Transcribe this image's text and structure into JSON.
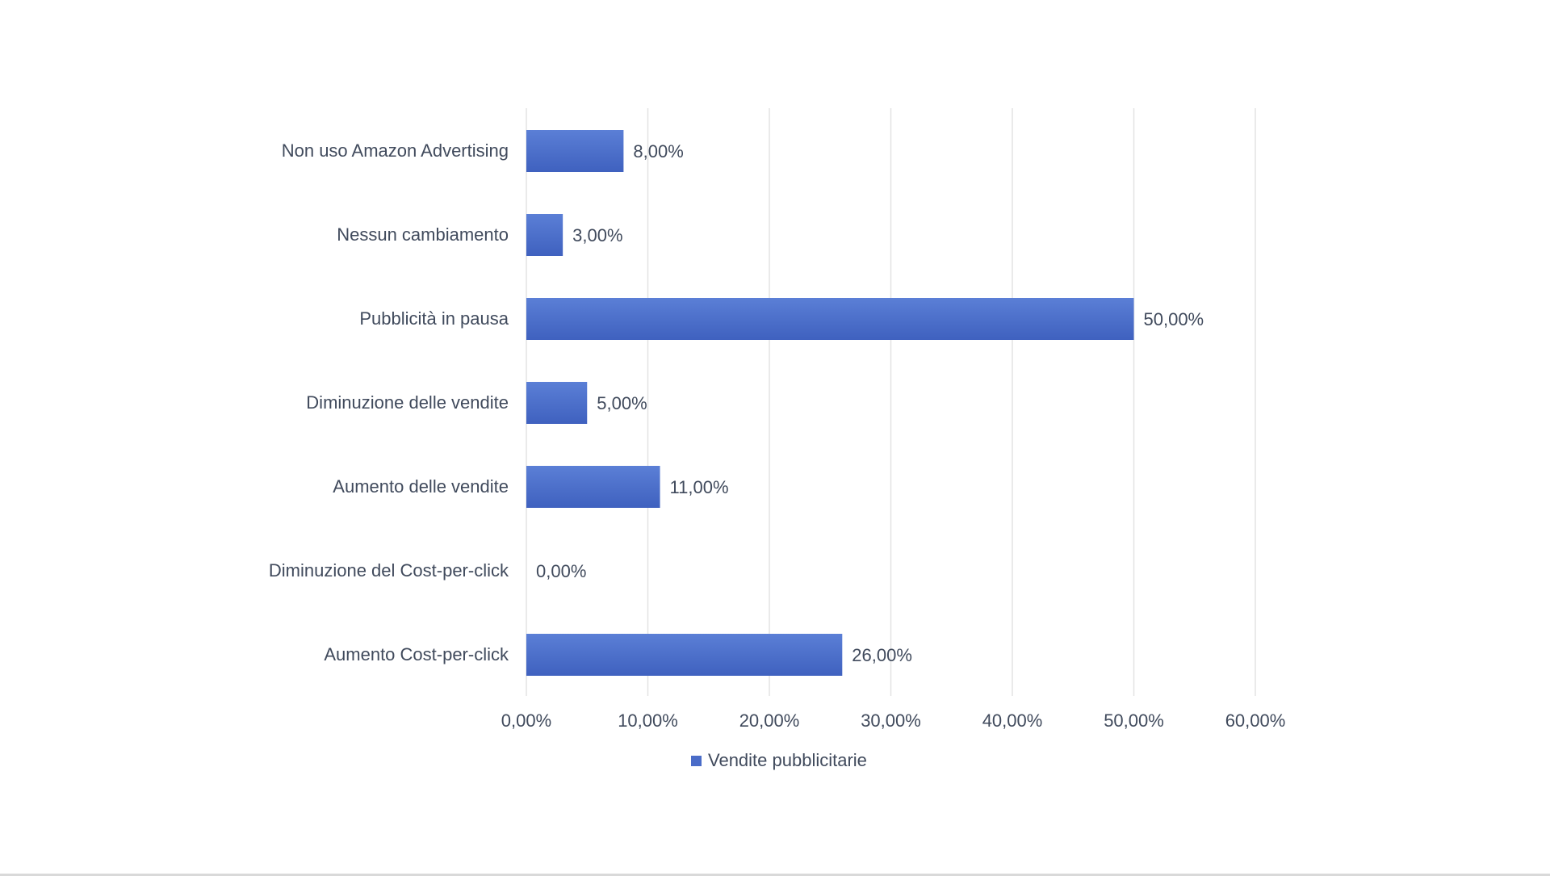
{
  "chart_data": {
    "type": "bar",
    "orientation": "horizontal",
    "categories": [
      "Non uso Amazon Advertising",
      "Nessun cambiamento",
      "Pubblicità in pausa",
      "Diminuzione delle vendite",
      "Aumento delle vendite",
      "Diminuzione del Cost-per-click",
      "Aumento Cost-per-click"
    ],
    "series": [
      {
        "name": "Vendite pubblicitarie",
        "values": [
          8,
          3,
          50,
          5,
          11,
          0,
          26
        ],
        "labels": [
          "8,00%",
          "3,00%",
          "50,00%",
          "5,00%",
          "11,00%",
          "0,00%",
          "26,00%"
        ],
        "color": "#4a6cc8"
      }
    ],
    "xticks": [
      "0,00%",
      "10,00%",
      "20,00%",
      "30,00%",
      "40,00%",
      "50,00%",
      "60,00%"
    ],
    "xlim": [
      0,
      60
    ],
    "grid": "vertical",
    "legend_position": "bottom",
    "title": "",
    "xlabel": "",
    "ylabel": ""
  }
}
